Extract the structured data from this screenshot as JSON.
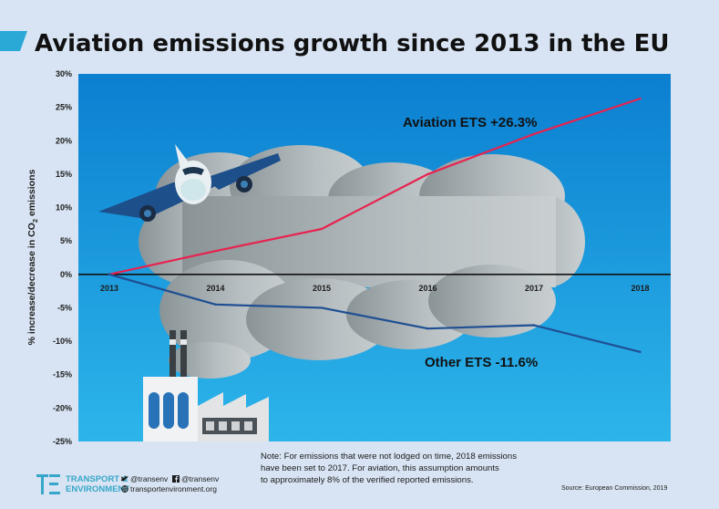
{
  "title": "Aviation emissions growth since 2013 in the EU",
  "colors": {
    "aviation": "#e8224f",
    "other": "#1f4f93",
    "accent": "#2aa9d6",
    "sky_top": "#0b7fd0",
    "sky_bottom": "#2db5ea",
    "cloud": "#b7bfc2"
  },
  "chart_data": {
    "type": "line",
    "title": "Aviation emissions growth since 2013 in the EU",
    "xlabel": "",
    "ylabel": "% increase/decrease in CO₂ emissions",
    "ylabel_parts": [
      "% increase/decrease in CO",
      "2",
      " emissions"
    ],
    "x": [
      "2013",
      "2014",
      "2015",
      "2016",
      "2017",
      "2018"
    ],
    "ylim": [
      -25,
      30
    ],
    "yticks": [
      30,
      25,
      20,
      15,
      10,
      5,
      0,
      -5,
      -10,
      -15,
      -20,
      -25
    ],
    "ytick_labels": [
      "30%",
      "25%",
      "20%",
      "15%",
      "10%",
      "5%",
      "0%",
      "-5%",
      "-10%",
      "-15%",
      "-20%",
      "-25%"
    ],
    "series": [
      {
        "name": "Aviation ETS",
        "label": "Aviation ETS +26.3%",
        "color": "#e8224f",
        "values": [
          0,
          3.5,
          6.8,
          15.0,
          21.0,
          26.3
        ]
      },
      {
        "name": "Other ETS",
        "label": "Other ETS -11.6%",
        "color": "#1f4f93",
        "values": [
          0,
          -4.5,
          -5.0,
          -8.1,
          -7.6,
          -11.6
        ]
      }
    ]
  },
  "note": {
    "lines": [
      "Note:  For emissions that were not lodged on time, 2018 emissions",
      "  have been set to 2017.  For aviation, this assumption amounts",
      "to approximately 8% of the verified reported emissions."
    ]
  },
  "source": "Source:  European Commission, 2019",
  "brand": {
    "line1": "TRANSPORT &",
    "line2": "ENVIRONMENT"
  },
  "social": {
    "twitter": "@transenv",
    "facebook": "@transenv",
    "website": "transportenvironment.org"
  }
}
